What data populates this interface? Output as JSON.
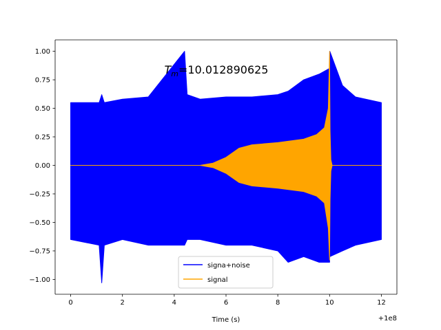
{
  "chart_data": {
    "type": "line",
    "title": "",
    "annotation": {
      "prefix_italic": "T",
      "subscript": "m",
      "value": "=10.012890625"
    },
    "xlabel": "Time (s)",
    "ylabel": "",
    "x_offset_label": "+1e8",
    "xlim": [
      -0.6,
      12.6
    ],
    "ylim": [
      -1.13,
      1.1
    ],
    "xticks": [
      0,
      2,
      4,
      6,
      8,
      10,
      12
    ],
    "xtick_labels": [
      "0",
      "2",
      "4",
      "6",
      "8",
      "10",
      "12"
    ],
    "yticks": [
      -1.0,
      -0.75,
      -0.5,
      -0.25,
      0.0,
      0.25,
      0.5,
      0.75,
      1.0
    ],
    "ytick_labels": [
      "−1.00",
      "−0.75",
      "−0.50",
      "−0.25",
      "0.00",
      "0.25",
      "0.50",
      "0.75",
      "1.00"
    ],
    "grid": false,
    "legend_position": "lower-center",
    "series": [
      {
        "name": "signa+noise",
        "color": "#0000ff",
        "x": [
          0.0,
          1.1,
          1.2,
          1.3,
          2.0,
          3.0,
          4.4,
          4.5,
          5.0,
          6.0,
          6.8,
          7.0,
          8.0,
          8.4,
          9.0,
          9.6,
          10.0,
          10.01,
          10.5,
          11.0,
          12.0
        ],
        "upper": [
          0.55,
          0.55,
          0.62,
          0.55,
          0.58,
          0.6,
          1.0,
          0.62,
          0.58,
          0.6,
          0.6,
          0.6,
          0.62,
          0.65,
          0.75,
          0.8,
          0.85,
          1.0,
          0.7,
          0.6,
          0.55
        ],
        "lower": [
          -0.65,
          -0.7,
          -1.03,
          -0.7,
          -0.65,
          -0.7,
          -0.7,
          -0.65,
          -0.65,
          -0.7,
          -0.7,
          -0.7,
          -0.75,
          -0.85,
          -0.8,
          -0.85,
          -0.85,
          -0.8,
          -0.75,
          -0.7,
          -0.65
        ]
      },
      {
        "name": "signal",
        "color": "#ffa500",
        "x": [
          0.0,
          5.0,
          5.5,
          6.0,
          6.5,
          7.0,
          8.0,
          9.0,
          9.5,
          9.8,
          9.95,
          10.0,
          10.02,
          10.05,
          10.1,
          12.0
        ],
        "upper": [
          0.0,
          0.0,
          0.02,
          0.07,
          0.15,
          0.18,
          0.2,
          0.23,
          0.27,
          0.33,
          0.5,
          1.0,
          0.3,
          0.05,
          0.0,
          0.0
        ],
        "lower": [
          0.0,
          0.0,
          -0.02,
          -0.07,
          -0.15,
          -0.18,
          -0.2,
          -0.23,
          -0.27,
          -0.33,
          -0.55,
          -0.83,
          -0.3,
          -0.05,
          0.0,
          0.0
        ]
      }
    ]
  }
}
